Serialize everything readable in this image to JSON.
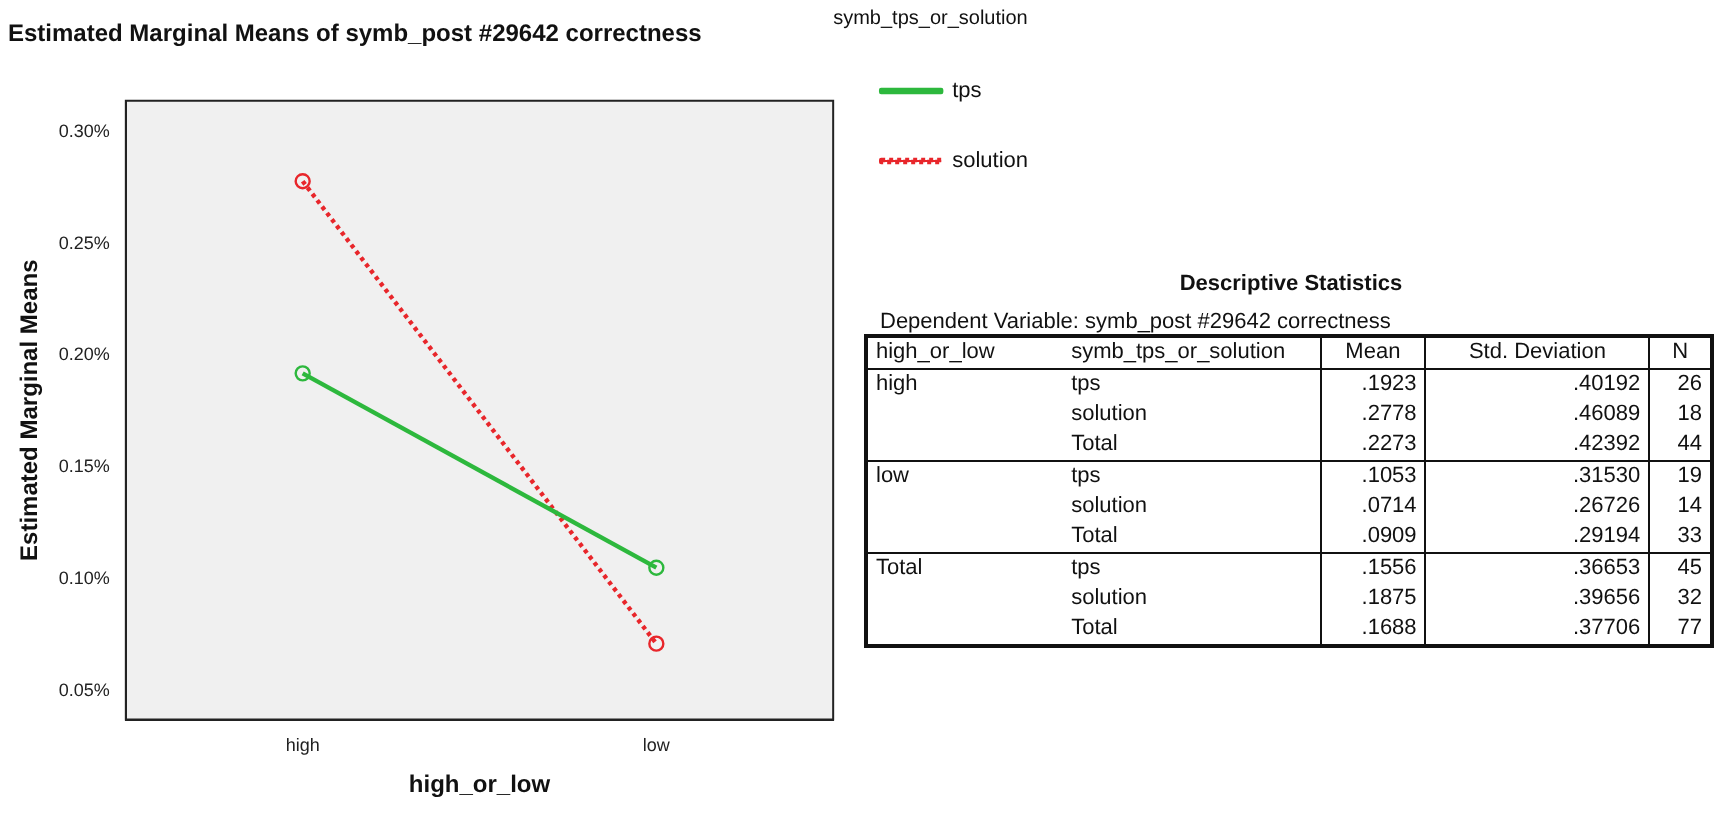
{
  "chart_data": {
    "type": "line",
    "title": "Estimated Marginal Means of symb_post #29642 correctness",
    "xlabel": "high_or_low",
    "ylabel": "Estimated Marginal Means",
    "legend_title": "symb_tps_or_solution",
    "categories": [
      "high",
      "low"
    ],
    "series": [
      {
        "name": "tps",
        "color": "#2db83d",
        "values": [
          0.192,
          0.105
        ],
        "line_style": "solid"
      },
      {
        "name": "solution",
        "color": "#e8262b",
        "values": [
          0.278,
          0.071
        ],
        "line_style": "dotted"
      }
    ],
    "ylim": [
      0.037,
      0.314
    ],
    "yticks": [
      {
        "value": 0.05,
        "label": "0.05%"
      },
      {
        "value": 0.1,
        "label": "0.10%"
      },
      {
        "value": 0.15,
        "label": "0.15%"
      },
      {
        "value": 0.2,
        "label": "0.20%"
      },
      {
        "value": 0.25,
        "label": "0.25%"
      },
      {
        "value": 0.3,
        "label": "0.30%"
      }
    ],
    "grid": false,
    "legend": "top right",
    "marker": "circle",
    "annotations": [
      "Descriptive Statistics",
      "Dependent Variable: symb_post #29642 correctness",
      "high_or_low\tsymb_tps_or_solution\tMean\tStd. Deviation\tN",
      "high\ttps\t.1923\t.40192\t26",
      "\tsolution\t.2778\t.46089\t18",
      "\tTotal\t.2273\t.42392\t44",
      "low\ttps\t.1053\t.31530\t19",
      "\tsolution\t.0714\t.26726\t14",
      "\tTotal\t.0909\t.29194\t33",
      "Total\ttps\t.1556\t.36653\t45",
      "\tsolution\t.1875\t.39656\t32",
      "\tTotal\t.1688\t.37706\t77"
    ]
  }
}
